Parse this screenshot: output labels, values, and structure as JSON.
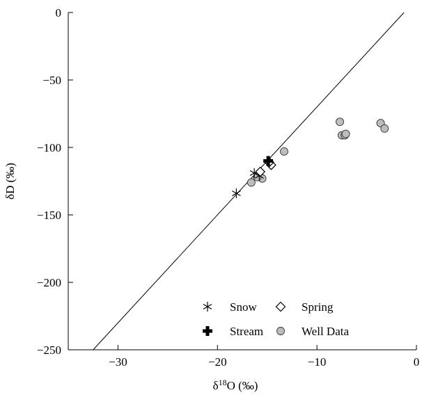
{
  "chart_data": {
    "type": "scatter",
    "title": "",
    "xlabel": "δ18O (‰)",
    "xlabel_parts": {
      "prefix": "δ",
      "superscript": "18",
      "suffix": "O (‰)"
    },
    "ylabel": "δD (‰)",
    "xlim": [
      -35,
      0
    ],
    "ylim": [
      -250,
      0
    ],
    "x_ticks": [
      -30,
      -20,
      -10,
      0
    ],
    "y_ticks": [
      0,
      -50,
      -100,
      -150,
      -200,
      -250
    ],
    "x_tick_labels": [
      "−30",
      "−20",
      "−10",
      "0"
    ],
    "y_tick_labels": [
      "0",
      "−50",
      "−100",
      "−150",
      "−200",
      "−250"
    ],
    "grid": false,
    "legend_position": "bottom-right",
    "reference_line": {
      "slope": 8,
      "intercept": 10
    },
    "series": [
      {
        "name": "Snow",
        "marker": "asterisk",
        "points": [
          [
            -18.1,
            -134
          ],
          [
            -16.3,
            -119
          ],
          [
            -15.8,
            -121
          ]
        ]
      },
      {
        "name": "Spring",
        "marker": "diamond",
        "points": [
          [
            -15.7,
            -118
          ],
          [
            -14.6,
            -113
          ],
          [
            -14.8,
            -111
          ]
        ]
      },
      {
        "name": "Stream",
        "marker": "cross",
        "points": [
          [
            -14.9,
            -110
          ]
        ]
      },
      {
        "name": "Well Data",
        "marker": "circle",
        "color": "#bdbdbd",
        "points": [
          [
            -16.6,
            -126
          ],
          [
            -15.5,
            -123
          ],
          [
            -16.0,
            -122
          ],
          [
            -13.3,
            -103
          ],
          [
            -7.7,
            -81
          ],
          [
            -7.5,
            -91
          ],
          [
            -7.2,
            -91
          ],
          [
            -7.1,
            -90
          ],
          [
            -3.6,
            -82
          ],
          [
            -3.2,
            -86
          ]
        ]
      }
    ]
  }
}
